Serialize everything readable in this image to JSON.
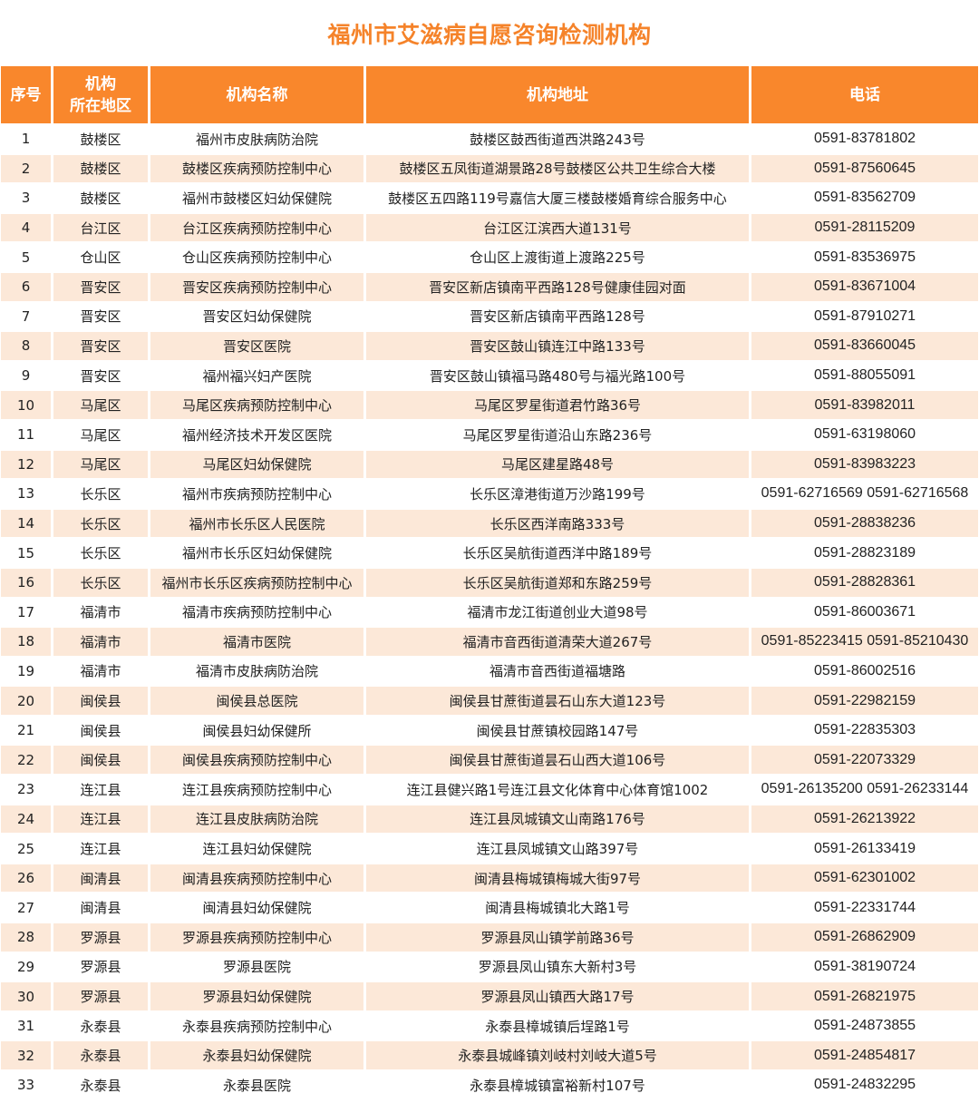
{
  "title": "福州市艾滋病自愿咨询检测机构",
  "colors": {
    "accent": "#f9872c",
    "title": "#f5832a",
    "stripe": "#fce8d8"
  },
  "headers": [
    "序号",
    "机构\n所在地区",
    "机构名称",
    "机构地址",
    "电话"
  ],
  "rows": [
    [
      "1",
      "鼓楼区",
      "福州市皮肤病防治院",
      "鼓楼区鼓西街道西洪路243号",
      "0591-83781802"
    ],
    [
      "2",
      "鼓楼区",
      "鼓楼区疾病预防控制中心",
      "鼓楼区五凤街道湖景路28号鼓楼区公共卫生综合大楼",
      "0591-87560645"
    ],
    [
      "3",
      "鼓楼区",
      "福州市鼓楼区妇幼保健院",
      "鼓楼区五四路119号嘉信大厦三楼鼓楼婚育综合服务中心",
      "0591-83562709"
    ],
    [
      "4",
      "台江区",
      "台江区疾病预防控制中心",
      "台江区江滨西大道131号",
      "0591-28115209"
    ],
    [
      "5",
      "仓山区",
      "仓山区疾病预防控制中心",
      "仓山区上渡街道上渡路225号",
      "0591-83536975"
    ],
    [
      "6",
      "晋安区",
      "晋安区疾病预防控制中心",
      "晋安区新店镇南平西路128号健康佳园对面",
      "0591-83671004"
    ],
    [
      "7",
      "晋安区",
      "晋安区妇幼保健院",
      "晋安区新店镇南平西路128号",
      "0591-87910271"
    ],
    [
      "8",
      "晋安区",
      "晋安区医院",
      "晋安区鼓山镇连江中路133号",
      "0591-83660045"
    ],
    [
      "9",
      "晋安区",
      "福州福兴妇产医院",
      "晋安区鼓山镇福马路480号与福光路100号",
      "0591-88055091"
    ],
    [
      "10",
      "马尾区",
      "马尾区疾病预防控制中心",
      "马尾区罗星街道君竹路36号",
      "0591-83982011"
    ],
    [
      "11",
      "马尾区",
      "福州经济技术开发区医院",
      "马尾区罗星街道沿山东路236号",
      "0591-63198060"
    ],
    [
      "12",
      "马尾区",
      "马尾区妇幼保健院",
      "马尾区建星路48号",
      "0591-83983223"
    ],
    [
      "13",
      "长乐区",
      "福州市疾病预防控制中心",
      "长乐区漳港街道万沙路199号",
      "0591-62716569  0591-62716568"
    ],
    [
      "14",
      "长乐区",
      "福州市长乐区人民医院",
      "长乐区西洋南路333号",
      "0591-28838236"
    ],
    [
      "15",
      "长乐区",
      "福州市长乐区妇幼保健院",
      "长乐区吴航街道西洋中路189号",
      "0591-28823189"
    ],
    [
      "16",
      "长乐区",
      "福州市长乐区疾病预防控制中心",
      "长乐区吴航街道郑和东路259号",
      "0591-28828361"
    ],
    [
      "17",
      "福清市",
      "福清市疾病预防控制中心",
      "福清市龙江街道创业大道98号",
      "0591-86003671"
    ],
    [
      "18",
      "福清市",
      "福清市医院",
      "福清市音西街道清荣大道267号",
      "0591-85223415 0591-85210430"
    ],
    [
      "19",
      "福清市",
      "福清市皮肤病防治院",
      "福清市音西街道福塘路",
      "0591-86002516"
    ],
    [
      "20",
      "闽侯县",
      "闽侯县总医院",
      "闽侯县甘蔗街道昙石山东大道123号",
      "0591-22982159"
    ],
    [
      "21",
      "闽侯县",
      "闽侯县妇幼保健所",
      "闽侯县甘蔗镇校园路147号",
      "0591-22835303"
    ],
    [
      "22",
      "闽侯县",
      "闽侯县疾病预防控制中心",
      "闽侯县甘蔗街道昙石山西大道106号",
      "0591-22073329"
    ],
    [
      "23",
      "连江县",
      "连江县疾病预防控制中心",
      "连江县健兴路1号连江县文化体育中心体育馆1002",
      "0591-26135200 0591-26233144"
    ],
    [
      "24",
      "连江县",
      "连江县皮肤病防治院",
      "连江县凤城镇文山南路176号",
      "0591-26213922"
    ],
    [
      "25",
      "连江县",
      "连江县妇幼保健院",
      "连江县凤城镇文山路397号",
      "0591-26133419"
    ],
    [
      "26",
      "闽清县",
      "闽清县疾病预防控制中心",
      "闽清县梅城镇梅城大街97号",
      "0591-62301002"
    ],
    [
      "27",
      "闽清县",
      "闽清县妇幼保健院",
      "闽清县梅城镇北大路1号",
      "0591-22331744"
    ],
    [
      "28",
      "罗源县",
      "罗源县疾病预防控制中心",
      "罗源县凤山镇学前路36号",
      "0591-26862909"
    ],
    [
      "29",
      "罗源县",
      "罗源县医院",
      "罗源县凤山镇东大新村3号",
      "0591-38190724"
    ],
    [
      "30",
      "罗源县",
      "罗源县妇幼保健院",
      "罗源县凤山镇西大路17号",
      "0591-26821975"
    ],
    [
      "31",
      "永泰县",
      "永泰县疾病预防控制中心",
      "永泰县樟城镇后埕路1号",
      "0591-24873855"
    ],
    [
      "32",
      "永泰县",
      "永泰县妇幼保健院",
      "永泰县城峰镇刘岐村刘岐大道5号",
      "0591-24854817"
    ],
    [
      "33",
      "永泰县",
      "永泰县医院",
      "永泰县樟城镇富裕新村107号",
      "0591-24832295"
    ]
  ]
}
